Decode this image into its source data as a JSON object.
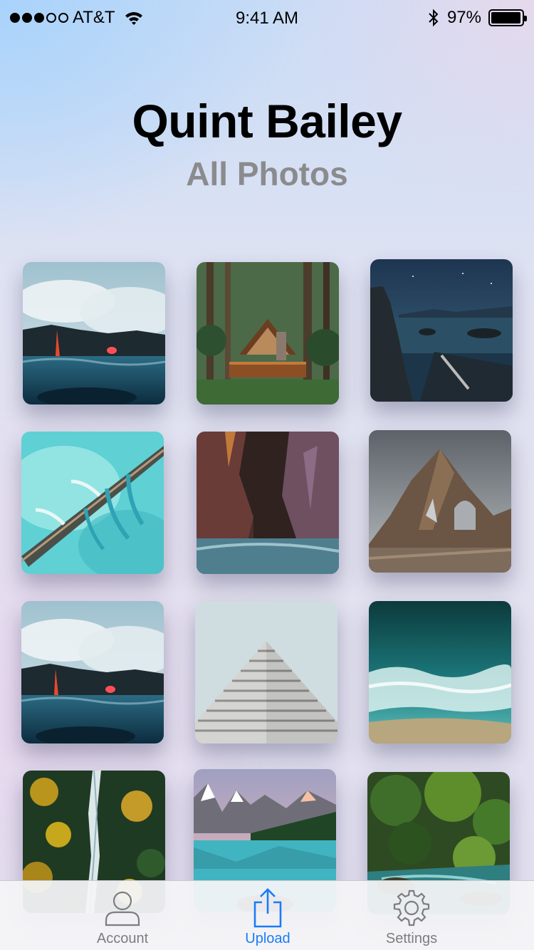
{
  "status_bar": {
    "carrier": "AT&T",
    "time": "9:41 AM",
    "battery_percent": "97%",
    "battery_level": 0.97,
    "signal_bars": 3,
    "signal_max": 5
  },
  "header": {
    "title": "Quint Bailey",
    "subtitle": "All Photos"
  },
  "photos": [
    {
      "subject": "lava-ocean"
    },
    {
      "subject": "forest-cabin"
    },
    {
      "subject": "night-lake"
    },
    {
      "subject": "aerial-ice"
    },
    {
      "subject": "slot-canyon"
    },
    {
      "subject": "rock-arch"
    },
    {
      "subject": "lava-ocean"
    },
    {
      "subject": "building"
    },
    {
      "subject": "ocean-wave"
    },
    {
      "subject": "river-forest"
    },
    {
      "subject": "mountain-lake"
    },
    {
      "subject": "jungle-stream"
    }
  ],
  "tab_bar": {
    "tabs": [
      {
        "label": "Account",
        "icon": "person-icon",
        "active": false
      },
      {
        "label": "Upload",
        "icon": "share-upload-icon",
        "active": true
      },
      {
        "label": "Settings",
        "icon": "gear-icon",
        "active": false
      }
    ],
    "active_color": "#1a7cf7",
    "inactive_color": "#7d7d80"
  }
}
